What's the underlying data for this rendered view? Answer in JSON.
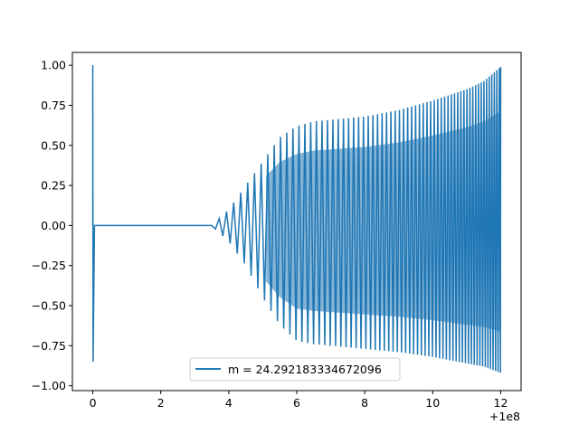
{
  "chart_data": {
    "type": "line",
    "title": "",
    "xlabel": "",
    "ylabel": "",
    "x_offset_label": "+1e8",
    "xlim": [
      -0.6,
      12.6
    ],
    "ylim": [
      -1.03,
      1.08
    ],
    "xticks": [
      0,
      2,
      4,
      6,
      8,
      10,
      12
    ],
    "xtick_labels": [
      "0",
      "2",
      "4",
      "6",
      "8",
      "10",
      "12"
    ],
    "yticks": [
      -1.0,
      -0.75,
      -0.5,
      -0.25,
      0.0,
      0.25,
      0.5,
      0.75,
      1.0
    ],
    "ytick_labels": [
      "−1.00",
      "−0.75",
      "−0.50",
      "−0.25",
      "0.00",
      "0.25",
      "0.50",
      "0.75",
      "1.00"
    ],
    "grid": false,
    "legend_position": "lower-center",
    "series": [
      {
        "name": "m = 24.292183334672096",
        "color": "#1f77b4",
        "initial_spike": {
          "x": 0.0,
          "y_max": 1.0,
          "y_min": -0.85
        },
        "flat_segment": {
          "x_start": 0.05,
          "x_end": 3.5,
          "y": 0.0
        },
        "oscillation": {
          "x_start": 3.5,
          "x_end": 12.0,
          "envelope_x": [
            3.5,
            4.0,
            4.5,
            5.0,
            5.5,
            6.0,
            6.5,
            7.0,
            8.0,
            9.0,
            10.0,
            11.0,
            11.5,
            12.0
          ],
          "envelope_upper": [
            0.0,
            0.1,
            0.25,
            0.4,
            0.55,
            0.62,
            0.65,
            0.66,
            0.68,
            0.72,
            0.78,
            0.85,
            0.9,
            0.99
          ],
          "envelope_lower": [
            0.0,
            -0.1,
            -0.25,
            -0.45,
            -0.62,
            -0.72,
            -0.74,
            -0.75,
            -0.77,
            -0.79,
            -0.82,
            -0.86,
            -0.88,
            -0.92
          ]
        }
      }
    ]
  }
}
